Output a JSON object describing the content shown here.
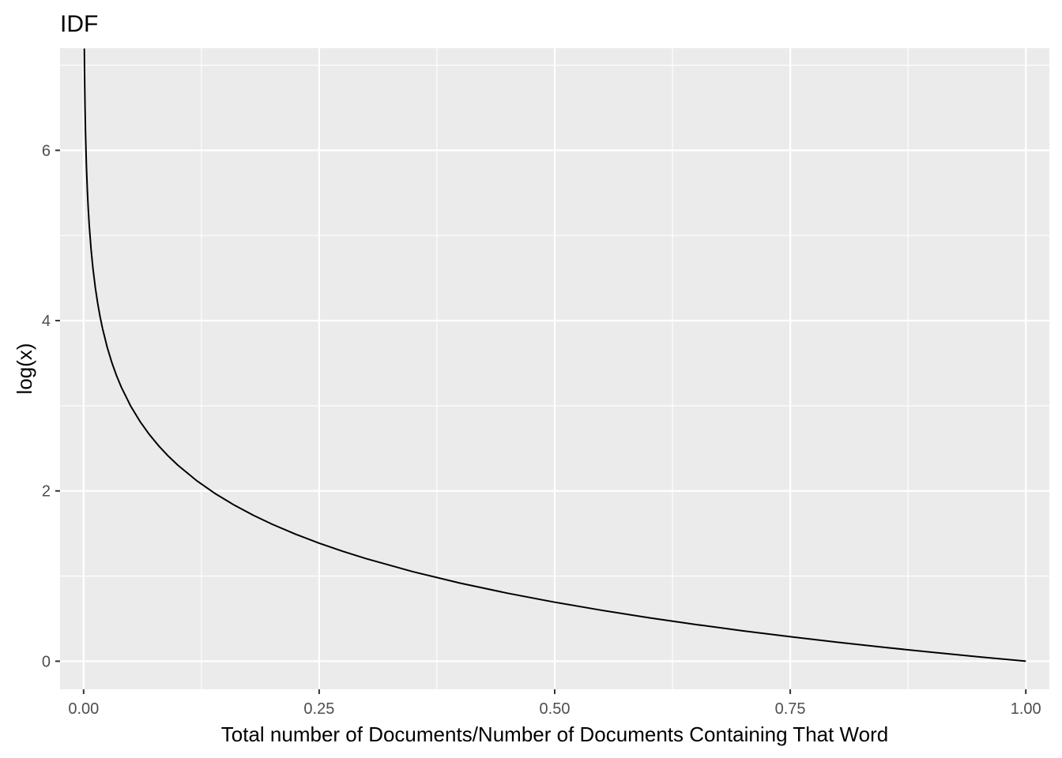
{
  "chart_data": {
    "type": "line",
    "title": "IDF",
    "xlabel": "Total number of Documents/Number of Documents Containing That Word",
    "ylabel": "log(x)",
    "xlim": [
      -0.025,
      1.025
    ],
    "ylim": [
      -0.33,
      7.2
    ],
    "x_ticks": [
      0.0,
      0.25,
      0.5,
      0.75,
      1.0
    ],
    "x_tick_labels": [
      "0.00",
      "0.25",
      "0.50",
      "0.75",
      "1.00"
    ],
    "y_ticks": [
      0,
      2,
      4,
      6
    ],
    "y_tick_labels": [
      "0",
      "2",
      "4",
      "6"
    ],
    "grid": true,
    "legend": "none",
    "series": [
      {
        "function": "-log(x)",
        "x": [
          0.00075,
          0.001,
          0.0015,
          0.002,
          0.003,
          0.004,
          0.005,
          0.006,
          0.008,
          0.01,
          0.0125,
          0.015,
          0.0175,
          0.02,
          0.025,
          0.03,
          0.035,
          0.04,
          0.05,
          0.06,
          0.07,
          0.08,
          0.09,
          0.1,
          0.12,
          0.14,
          0.16,
          0.18,
          0.2,
          0.225,
          0.25,
          0.275,
          0.3,
          0.35,
          0.4,
          0.45,
          0.5,
          0.55,
          0.6,
          0.65,
          0.7,
          0.75,
          0.8,
          0.85,
          0.9,
          0.95,
          1.0
        ],
        "y": [
          7.1954,
          6.9078,
          6.5023,
          6.2146,
          5.8091,
          5.5215,
          5.2983,
          5.116,
          4.8283,
          4.6052,
          4.382,
          4.1997,
          4.0456,
          3.912,
          3.6889,
          3.5066,
          3.3524,
          3.2189,
          2.9957,
          2.8134,
          2.6593,
          2.5257,
          2.4079,
          2.3026,
          2.1203,
          1.9661,
          1.8326,
          1.7148,
          1.6094,
          1.4917,
          1.3863,
          1.291,
          1.204,
          1.0498,
          0.9163,
          0.7985,
          0.6931,
          0.5978,
          0.5108,
          0.4308,
          0.3567,
          0.2877,
          0.2231,
          0.1625,
          0.1054,
          0.0513,
          0.0
        ]
      }
    ],
    "colors": {
      "panel_background": "#ebebeb",
      "grid_major": "#ffffff",
      "line": "#000000",
      "tick_label": "#4d4d4d"
    }
  }
}
